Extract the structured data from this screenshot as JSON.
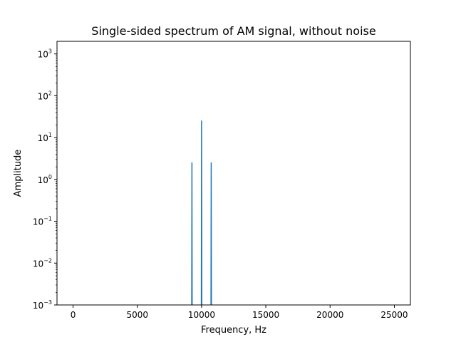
{
  "chart_data": {
    "type": "line",
    "title": "Single-sided spectrum of AM signal, without noise",
    "xlabel": "Frequency, Hz",
    "ylabel": "Amplitude",
    "xlim": [
      -1250,
      26250
    ],
    "ylim": [
      0.001,
      2000
    ],
    "yscale": "log",
    "grid": false,
    "x_ticks": [
      0,
      5000,
      10000,
      15000,
      20000,
      25000
    ],
    "x_tick_labels": [
      "0",
      "5000",
      "10000",
      "15000",
      "20000",
      "25000"
    ],
    "y_ticks": [
      0.001,
      0.01,
      0.1,
      1,
      10,
      100,
      1000
    ],
    "y_tick_labels": [
      {
        "base": "10",
        "exp": "−3"
      },
      {
        "base": "10",
        "exp": "−2"
      },
      {
        "base": "10",
        "exp": "−1"
      },
      {
        "base": "10",
        "exp": "0"
      },
      {
        "base": "10",
        "exp": "1"
      },
      {
        "base": "10",
        "exp": "2"
      },
      {
        "base": "10",
        "exp": "3"
      }
    ],
    "series": [
      {
        "color": "#1f77b4",
        "points": [
          {
            "x": 9230,
            "y": 1e-07
          },
          {
            "x": 9250,
            "y": 2.5
          },
          {
            "x": 9270,
            "y": 1e-07
          },
          {
            "x": 9980,
            "y": 1e-07
          },
          {
            "x": 10000,
            "y": 25
          },
          {
            "x": 10020,
            "y": 1e-07
          },
          {
            "x": 10730,
            "y": 1e-07
          },
          {
            "x": 10750,
            "y": 2.5
          },
          {
            "x": 10770,
            "y": 1e-07
          }
        ]
      }
    ]
  }
}
